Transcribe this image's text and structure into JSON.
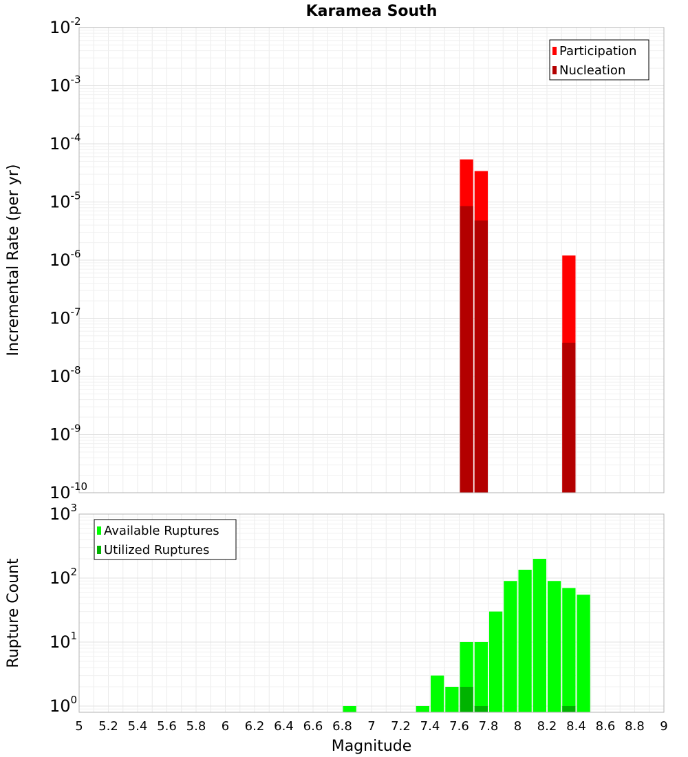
{
  "chart_data": [
    {
      "type": "bar",
      "title": "Karamea South",
      "xlabel": "",
      "ylabel": "Incremental Rate (per yr)",
      "y_scale": "log",
      "ylim": [
        1e-10,
        0.01
      ],
      "xlim": [
        5,
        9
      ],
      "y_tick_exponents": [
        -10,
        -9,
        -8,
        -7,
        -6,
        -5,
        -4,
        -3,
        -2
      ],
      "grid": true,
      "legend_position": "top-right",
      "bar_width": 0.1,
      "series": [
        {
          "name": "Participation",
          "color": "#ff0000",
          "x": [
            7.65,
            7.75,
            8.35
          ],
          "values": [
            5.4e-05,
            3.4e-05,
            1.2e-06
          ]
        },
        {
          "name": "Nucleation",
          "color": "#b30000",
          "x": [
            7.65,
            7.75,
            8.35
          ],
          "values": [
            8.5e-06,
            4.8e-06,
            3.8e-08
          ]
        }
      ]
    },
    {
      "type": "bar",
      "title": "",
      "xlabel": "Magnitude",
      "ylabel": "Rupture Count",
      "y_scale": "log",
      "ylim": [
        0.8,
        1000
      ],
      "xlim": [
        5,
        9
      ],
      "x_ticks": [
        "5",
        "5.2",
        "5.4",
        "5.6",
        "5.8",
        "6",
        "6.2",
        "6.4",
        "6.6",
        "6.8",
        "7",
        "7.2",
        "7.4",
        "7.6",
        "7.8",
        "8",
        "8.2",
        "8.4",
        "8.6",
        "8.8",
        "9"
      ],
      "y_tick_exponents": [
        0,
        1,
        2,
        3
      ],
      "grid": true,
      "legend_position": "top-left",
      "bar_width": 0.1,
      "series": [
        {
          "name": "Available Ruptures",
          "color": "#00ff00",
          "x": [
            6.85,
            7.35,
            7.45,
            7.55,
            7.65,
            7.75,
            7.85,
            7.95,
            8.05,
            8.15,
            8.25,
            8.35,
            8.45
          ],
          "values": [
            1,
            1,
            3,
            2,
            10,
            10,
            30,
            90,
            135,
            200,
            90,
            70,
            55
          ]
        },
        {
          "name": "Utilized Ruptures",
          "color": "#00b300",
          "x": [
            7.65,
            7.75,
            8.35
          ],
          "values": [
            2,
            1,
            1
          ]
        }
      ]
    }
  ]
}
